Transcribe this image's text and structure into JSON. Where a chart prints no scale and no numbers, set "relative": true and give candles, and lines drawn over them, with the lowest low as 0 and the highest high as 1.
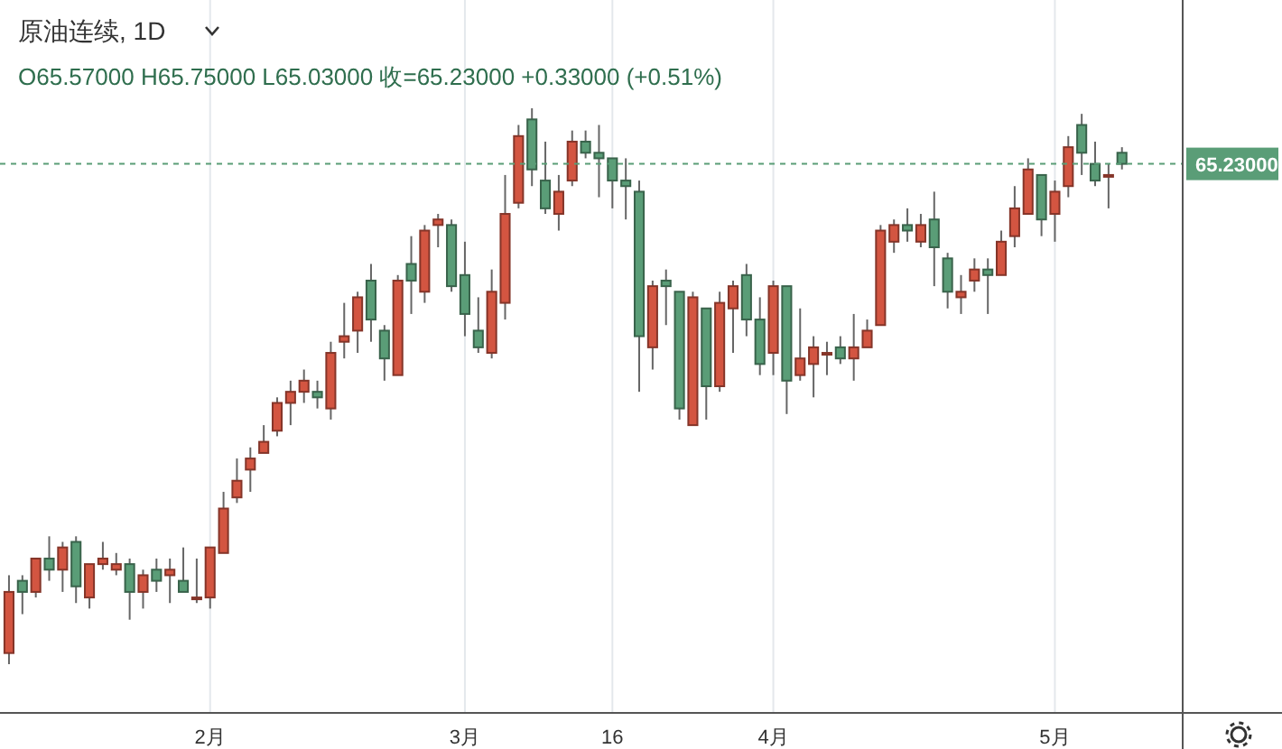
{
  "chart_data": {
    "type": "candlestick",
    "title": "原油连续, 1D",
    "subtitle": "O65.57000 H65.75000 L65.03000 收=65.23000 +0.33000 (+0.51%)",
    "relative": true,
    "grid": "x",
    "colors": [
      "#d35541",
      "#5a9d77",
      "#d35541",
      "#5a9d77",
      "#d35541",
      "#5a9d77",
      "#d35541",
      "#d35541",
      "#d35541",
      "#5a9d77",
      "#d35541",
      "#5a9d77",
      "#d35541",
      "#5a9d77",
      "#d35541",
      "#d35541",
      "#d35541",
      "#d35541",
      "#d35541",
      "#d35541",
      "#d35541",
      "#d35541",
      "#d35541",
      "#5a9d77",
      "#d35541",
      "#d35541",
      "#d35541",
      "#5a9d77",
      "#5a9d77",
      "#d35541",
      "#5a9d77",
      "#d35541",
      "#d35541",
      "#5a9d77",
      "#5a9d77",
      "#5a9d77",
      "#d35541",
      "#d35541",
      "#d35541",
      "#5a9d77",
      "#5a9d77",
      "#d35541",
      "#d35541",
      "#5a9d77",
      "#5a9d77",
      "#5a9d77",
      "#5a9d77",
      "#5a9d77",
      "#d35541",
      "#5a9d77",
      "#5a9d77",
      "#d35541",
      "#5a9d77",
      "#d35541",
      "#d35541",
      "#5a9d77",
      "#5a9d77",
      "#d35541",
      "#5a9d77",
      "#d35541",
      "#d35541",
      "#d35541",
      "#5a9d77",
      "#d35541",
      "#d35541",
      "#d35541",
      "#d35541",
      "#5a9d77",
      "#d35541",
      "#5a9d77",
      "#5a9d77",
      "#d35541",
      "#d35541",
      "#5a9d77",
      "#d35541",
      "#d35541",
      "#d35541",
      "#5a9d77",
      "#d35541",
      "#d35541",
      "#5a9d77",
      "#5a9d77",
      "#d35541",
      "#5a9d77"
    ],
    "annotations": [
      "65.23000"
    ],
    "categories": [
      null,
      null,
      null,
      null,
      null,
      null,
      null,
      null,
      null,
      null,
      null,
      null,
      null,
      null,
      null,
      "2月",
      null,
      null,
      null,
      null,
      null,
      null,
      null,
      null,
      null,
      null,
      null,
      null,
      null,
      null,
      null,
      null,
      null,
      null,
      "3月",
      null,
      null,
      null,
      null,
      null,
      null,
      null,
      null,
      null,
      null,
      "16",
      null,
      null,
      null,
      null,
      null,
      null,
      null,
      null,
      null,
      null,
      null,
      "4月",
      null,
      null,
      null,
      null,
      null,
      null,
      null,
      null,
      null,
      null,
      null,
      null,
      null,
      null,
      null,
      null,
      null,
      null,
      null,
      null,
      "5月",
      null,
      null,
      null,
      null,
      null
    ],
    "ohlc": [
      [
        0.02,
        0.16,
        0,
        0.13
      ],
      [
        0.15,
        0.16,
        0.09,
        0.13
      ],
      [
        0.13,
        0.19,
        0.12,
        0.19
      ],
      [
        0.19,
        0.23,
        0.15,
        0.17
      ],
      [
        0.17,
        0.22,
        0.13,
        0.21
      ],
      [
        0.22,
        0.23,
        0.11,
        0.14
      ],
      [
        0.12,
        0.18,
        0.1,
        0.18
      ],
      [
        0.18,
        0.22,
        0.17,
        0.19
      ],
      [
        0.17,
        0.2,
        0.16,
        0.18
      ],
      [
        0.18,
        0.19,
        0.08,
        0.13
      ],
      [
        0.13,
        0.17,
        0.1,
        0.16
      ],
      [
        0.17,
        0.19,
        0.13,
        0.15
      ],
      [
        0.16,
        0.19,
        0.11,
        0.17
      ],
      [
        0.15,
        0.21,
        0.13,
        0.13
      ],
      [
        0.12,
        0.19,
        0.11,
        0.12
      ],
      [
        0.12,
        0.21,
        0.1,
        0.21
      ],
      [
        0.2,
        0.31,
        0.2,
        0.28
      ],
      [
        0.3,
        0.37,
        0.29,
        0.33
      ],
      [
        0.35,
        0.39,
        0.31,
        0.37
      ],
      [
        0.38,
        0.43,
        0.38,
        0.4
      ],
      [
        0.42,
        0.48,
        0.41,
        0.47
      ],
      [
        0.47,
        0.51,
        0.43,
        0.49
      ],
      [
        0.49,
        0.53,
        0.47,
        0.51
      ],
      [
        0.49,
        0.51,
        0.46,
        0.48
      ],
      [
        0.46,
        0.58,
        0.44,
        0.56
      ],
      [
        0.58,
        0.65,
        0.55,
        0.59
      ],
      [
        0.6,
        0.67,
        0.56,
        0.66
      ],
      [
        0.69,
        0.72,
        0.58,
        0.62
      ],
      [
        0.6,
        0.61,
        0.51,
        0.55
      ],
      [
        0.52,
        0.7,
        0.52,
        0.69
      ],
      [
        0.72,
        0.77,
        0.63,
        0.69
      ],
      [
        0.67,
        0.79,
        0.65,
        0.78
      ],
      [
        0.79,
        0.81,
        0.75,
        0.8
      ],
      [
        0.79,
        0.8,
        0.67,
        0.68
      ],
      [
        0.7,
        0.76,
        0.59,
        0.63
      ],
      [
        0.6,
        0.66,
        0.56,
        0.57
      ],
      [
        0.56,
        0.71,
        0.55,
        0.67
      ],
      [
        0.65,
        0.88,
        0.62,
        0.81
      ],
      [
        0.83,
        0.97,
        0.82,
        0.95
      ],
      [
        0.98,
        1,
        0.86,
        0.89
      ],
      [
        0.87,
        0.94,
        0.81,
        0.82
      ],
      [
        0.81,
        0.88,
        0.78,
        0.85
      ],
      [
        0.87,
        0.96,
        0.86,
        0.94
      ],
      [
        0.94,
        0.96,
        0.91,
        0.92
      ],
      [
        0.92,
        0.97,
        0.84,
        0.91
      ],
      [
        0.91,
        0.91,
        0.82,
        0.87
      ],
      [
        0.87,
        0.91,
        0.8,
        0.86
      ],
      [
        0.85,
        0.87,
        0.49,
        0.59
      ],
      [
        0.57,
        0.69,
        0.53,
        0.68
      ],
      [
        0.69,
        0.71,
        0.61,
        0.68
      ],
      [
        0.67,
        0.67,
        0.44,
        0.46
      ],
      [
        0.43,
        0.67,
        0.43,
        0.66
      ],
      [
        0.64,
        0.64,
        0.44,
        0.5
      ],
      [
        0.5,
        0.67,
        0.49,
        0.65
      ],
      [
        0.64,
        0.69,
        0.56,
        0.68
      ],
      [
        0.7,
        0.72,
        0.59,
        0.62
      ],
      [
        0.62,
        0.66,
        0.52,
        0.54
      ],
      [
        0.56,
        0.69,
        0.52,
        0.68
      ],
      [
        0.68,
        0.68,
        0.45,
        0.51
      ],
      [
        0.52,
        0.64,
        0.51,
        0.55
      ],
      [
        0.54,
        0.59,
        0.48,
        0.57
      ],
      [
        0.56,
        0.58,
        0.52,
        0.56
      ],
      [
        0.57,
        0.59,
        0.54,
        0.55
      ],
      [
        0.55,
        0.63,
        0.51,
        0.57
      ],
      [
        0.57,
        0.62,
        0.57,
        0.6
      ],
      [
        0.61,
        0.79,
        0.61,
        0.78
      ],
      [
        0.76,
        0.8,
        0.74,
        0.79
      ],
      [
        0.79,
        0.82,
        0.76,
        0.78
      ],
      [
        0.76,
        0.81,
        0.75,
        0.79
      ],
      [
        0.8,
        0.85,
        0.68,
        0.75
      ],
      [
        0.73,
        0.74,
        0.64,
        0.67
      ],
      [
        0.66,
        0.7,
        0.63,
        0.67
      ],
      [
        0.69,
        0.73,
        0.67,
        0.71
      ],
      [
        0.71,
        0.73,
        0.63,
        0.7
      ],
      [
        0.7,
        0.78,
        0.7,
        0.76
      ],
      [
        0.77,
        0.86,
        0.75,
        0.82
      ],
      [
        0.81,
        0.91,
        0.81,
        0.89
      ],
      [
        0.88,
        0.88,
        0.77,
        0.8
      ],
      [
        0.81,
        0.87,
        0.76,
        0.85
      ],
      [
        0.86,
        0.95,
        0.84,
        0.93
      ],
      [
        0.97,
        0.99,
        0.88,
        0.92
      ],
      [
        0.9,
        0.94,
        0.86,
        0.87
      ],
      [
        0.88,
        0.9,
        0.82,
        0.88
      ],
      [
        0.92,
        0.93,
        0.89,
        0.9
      ]
    ],
    "ref_lines": [
      {
        "axis": "y",
        "value": 0.9,
        "color": "#5a9d77",
        "line_style": "dashed"
      }
    ]
  }
}
